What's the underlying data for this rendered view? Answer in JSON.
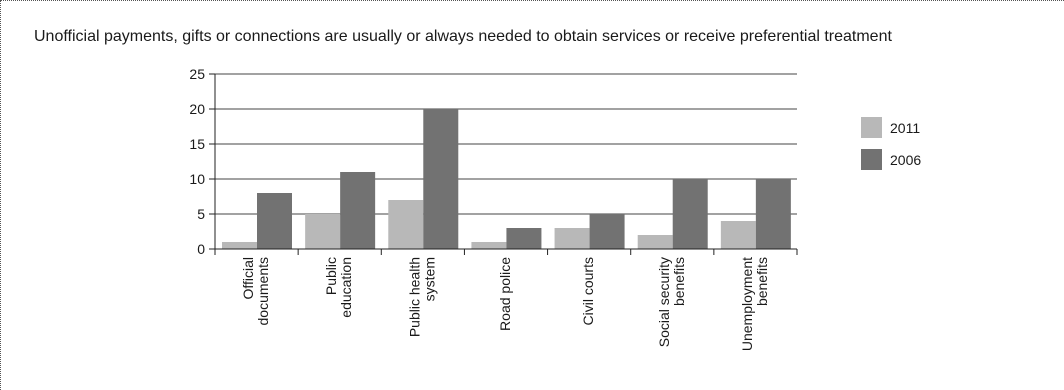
{
  "chart_data": {
    "type": "bar",
    "title": "Unofficial payments, gifts or connections are usually or always needed to obtain services or receive preferential treatment",
    "categories": [
      [
        "Official",
        "documents"
      ],
      [
        "Public",
        "education"
      ],
      [
        "Public health",
        "system"
      ],
      [
        "Road police"
      ],
      [
        "Civil courts"
      ],
      [
        "Social security",
        "benefits"
      ],
      [
        "Unemployment",
        "benefits"
      ]
    ],
    "series": [
      {
        "name": "2011",
        "color": "#b8b8b8",
        "values": [
          1,
          5,
          7,
          1,
          3,
          2,
          4
        ]
      },
      {
        "name": "2006",
        "color": "#727272",
        "values": [
          8,
          11,
          20,
          3,
          5,
          10,
          10
        ]
      }
    ],
    "ylim": [
      0,
      25
    ],
    "yticks": [
      0,
      5,
      10,
      15,
      20,
      25
    ],
    "grid": true,
    "legend": "right"
  }
}
